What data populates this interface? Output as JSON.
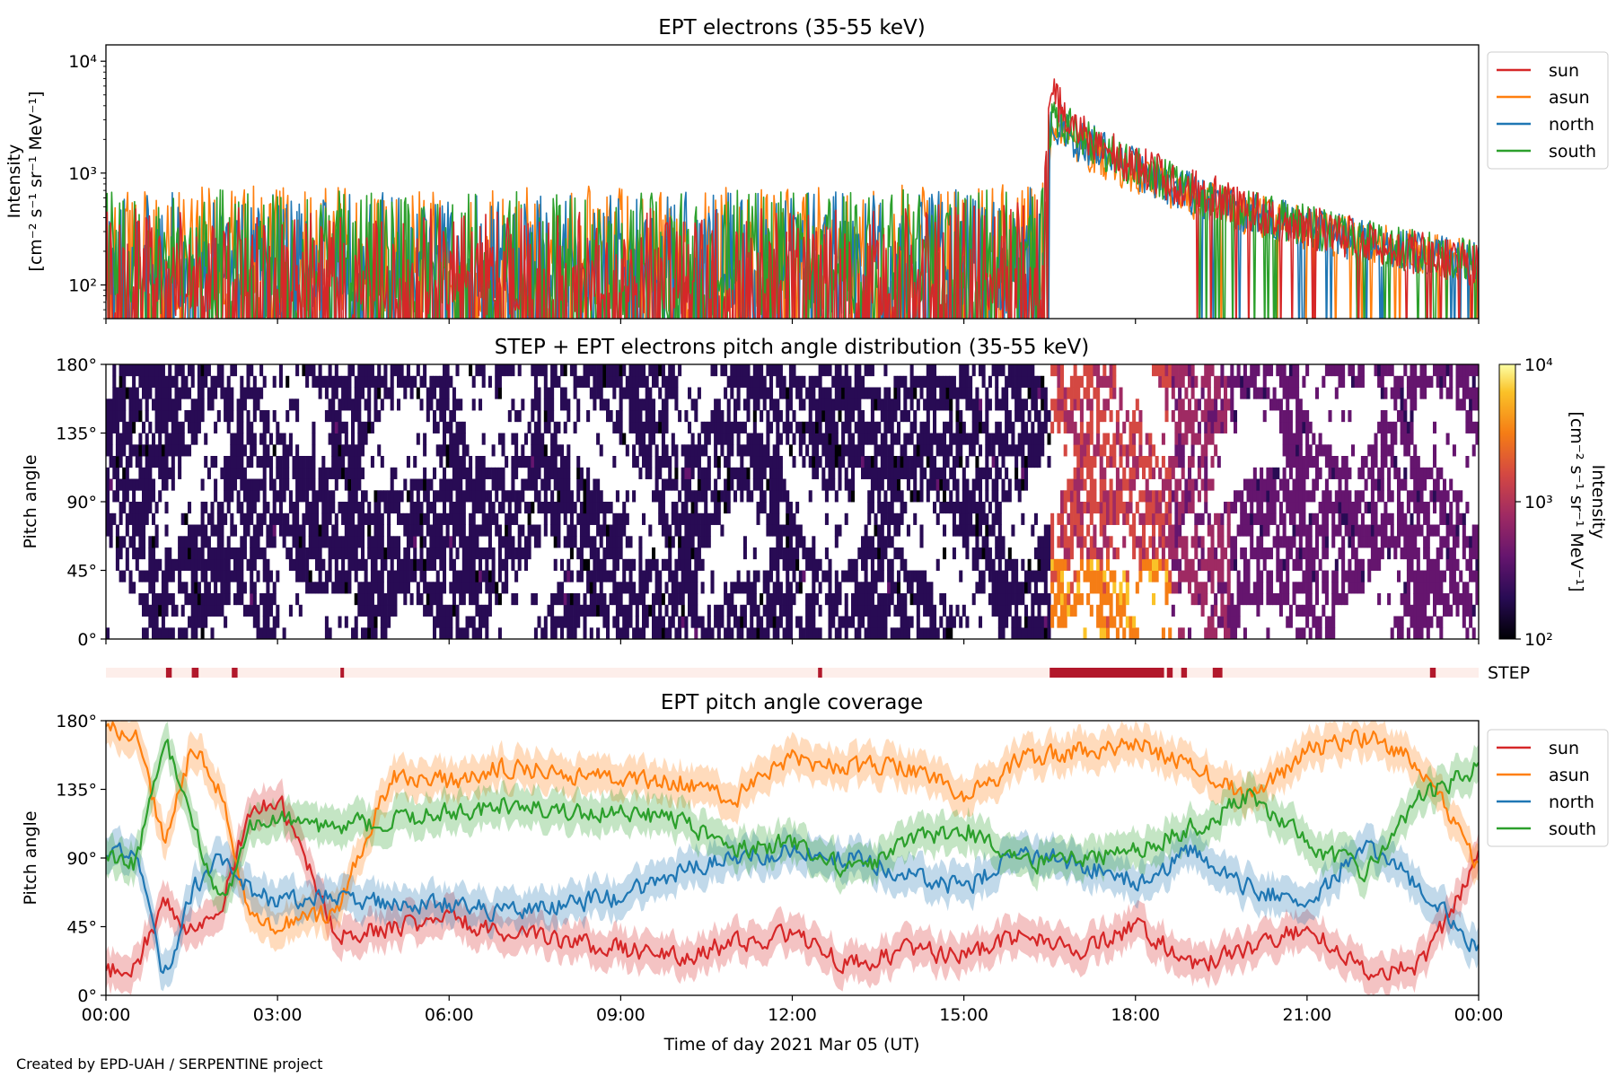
{
  "credit": "Created by EPD-UAH / SERPENTINE project",
  "colors": {
    "sun": "#d62728",
    "asun": "#ff7f0e",
    "north": "#1f77b4",
    "south": "#2ca02c",
    "step_bar": "#b2182b",
    "step_bg": "#fdeeea"
  },
  "chart_data": [
    {
      "type": "line",
      "title": "EPT electrons (35-55 keV)",
      "ylabel_line1": "Intensity",
      "ylabel_line2": "[cm⁻² s⁻¹ sr⁻¹ MeV⁻¹]",
      "yscale": "log",
      "ylim": [
        50,
        14000
      ],
      "yticks": [
        {
          "value": 100,
          "label": "10²"
        },
        {
          "value": 1000,
          "label": "10³"
        },
        {
          "value": 10000,
          "label": "10⁴"
        }
      ],
      "xlim_hours": [
        0,
        24
      ],
      "legend_position": "outside-right",
      "series": [
        {
          "name": "sun",
          "x_hours": [
            0,
            2,
            4,
            6,
            8,
            10,
            12,
            14,
            16,
            16.4,
            16.55,
            16.7,
            17,
            17.5,
            18,
            18.5,
            19,
            20,
            21,
            22,
            23,
            24
          ],
          "values": [
            130,
            135,
            130,
            135,
            130,
            135,
            140,
            145,
            150,
            160,
            5200,
            3600,
            2200,
            1600,
            1200,
            900,
            700,
            450,
            330,
            250,
            190,
            150
          ]
        },
        {
          "name": "asun",
          "x_hours": [
            0,
            2,
            4,
            6,
            8,
            10,
            12,
            14,
            16,
            16.4,
            16.55,
            16.7,
            17,
            17.5,
            18,
            18.5,
            19,
            20,
            21,
            22,
            23,
            24
          ],
          "values": [
            200,
            210,
            205,
            200,
            210,
            205,
            200,
            220,
            230,
            240,
            1800,
            2400,
            1800,
            1300,
            1000,
            800,
            600,
            420,
            320,
            240,
            190,
            160
          ]
        },
        {
          "name": "north",
          "x_hours": [
            0,
            2,
            4,
            6,
            8,
            10,
            12,
            14,
            16,
            16.4,
            16.55,
            16.7,
            17,
            17.5,
            18,
            18.5,
            19,
            20,
            21,
            22,
            23,
            24
          ],
          "values": [
            180,
            185,
            180,
            185,
            180,
            185,
            190,
            195,
            200,
            210,
            3000,
            2600,
            2000,
            1500,
            1100,
            850,
            650,
            430,
            320,
            240,
            190,
            160
          ]
        },
        {
          "name": "south",
          "x_hours": [
            0,
            2,
            4,
            6,
            8,
            10,
            12,
            14,
            16,
            16.4,
            16.55,
            16.7,
            17,
            17.5,
            18,
            18.5,
            19,
            20,
            21,
            22,
            23,
            24
          ],
          "values": [
            190,
            195,
            190,
            195,
            190,
            195,
            200,
            205,
            210,
            220,
            3400,
            2800,
            2100,
            1550,
            1150,
            880,
            680,
            440,
            330,
            250,
            195,
            165
          ]
        }
      ]
    },
    {
      "type": "heatmap",
      "title": "STEP + EPT electrons pitch angle distribution (35-55 keV)",
      "ylabel": "Pitch angle",
      "ylim": [
        0,
        180
      ],
      "yticks": [
        "0°",
        "45°",
        "90°",
        "135°",
        "180°"
      ],
      "xlim_hours": [
        0,
        24
      ],
      "colorbar": {
        "label_line1": "Intensity",
        "label_line2": "[cm⁻² s⁻¹ sr⁻¹ MeV⁻¹]",
        "scale": "log",
        "range": [
          100,
          10000
        ],
        "ticks": [
          {
            "value": 100,
            "label": "10²"
          },
          {
            "value": 1000,
            "label": "10³"
          },
          {
            "value": 10000,
            "label": "10⁴"
          }
        ],
        "colormap": "inferno"
      },
      "step_label": "STEP",
      "step_intervals_hours": [
        [
          1.05,
          1.15
        ],
        [
          1.5,
          1.62
        ],
        [
          2.2,
          2.3
        ],
        [
          4.1,
          4.16
        ],
        [
          12.45,
          12.52
        ],
        [
          16.5,
          18.5
        ],
        [
          18.55,
          18.65
        ],
        [
          18.8,
          18.9
        ],
        [
          19.35,
          19.52
        ],
        [
          23.15,
          23.25
        ]
      ]
    },
    {
      "type": "line",
      "title": "EPT pitch angle coverage",
      "ylabel": "Pitch angle",
      "ylim": [
        0,
        180
      ],
      "yticks": [
        "0°",
        "45°",
        "90°",
        "135°",
        "180°"
      ],
      "xlabel": "Time of day 2021 Mar 05 (UT)",
      "xlim_hours": [
        0,
        24
      ],
      "xticks": [
        "00:00",
        "03:00",
        "06:00",
        "09:00",
        "12:00",
        "15:00",
        "18:00",
        "21:00",
        "00:00"
      ],
      "legend_position": "outside-right",
      "series": [
        {
          "name": "sun",
          "x_hours": [
            0,
            0.5,
            1,
            1.5,
            2,
            2.5,
            3,
            4,
            5,
            6,
            7,
            8,
            9,
            10,
            11,
            12,
            13,
            14,
            15,
            16,
            17,
            18,
            19,
            20,
            21,
            22,
            23,
            24
          ],
          "values": [
            15,
            20,
            60,
            40,
            60,
            120,
            130,
            40,
            45,
            50,
            40,
            35,
            30,
            25,
            35,
            40,
            20,
            30,
            25,
            40,
            30,
            45,
            20,
            30,
            45,
            15,
            20,
            90
          ]
        },
        {
          "name": "asun",
          "x_hours": [
            0,
            0.5,
            1,
            1.5,
            2,
            2.5,
            3,
            4,
            5,
            6,
            7,
            8,
            9,
            10,
            11,
            12,
            13,
            14,
            15,
            16,
            17,
            18,
            19,
            20,
            21,
            22,
            23,
            24
          ],
          "values": [
            175,
            170,
            100,
            165,
            130,
            50,
            45,
            55,
            145,
            140,
            150,
            145,
            140,
            140,
            130,
            155,
            150,
            150,
            130,
            155,
            160,
            165,
            150,
            130,
            160,
            170,
            150,
            80
          ]
        },
        {
          "name": "north",
          "x_hours": [
            0,
            0.5,
            1,
            1.5,
            2,
            2.5,
            3,
            4,
            5,
            6,
            7,
            8,
            9,
            10,
            11,
            12,
            13,
            14,
            15,
            16,
            17,
            18,
            19,
            20,
            21,
            22,
            23,
            24
          ],
          "values": [
            90,
            95,
            10,
            70,
            90,
            70,
            60,
            65,
            60,
            60,
            55,
            60,
            65,
            80,
            90,
            95,
            90,
            80,
            70,
            95,
            85,
            75,
            95,
            70,
            60,
            100,
            70,
            30
          ]
        },
        {
          "name": "south",
          "x_hours": [
            0,
            0.5,
            1,
            1.5,
            2,
            2.5,
            3,
            4,
            5,
            6,
            7,
            8,
            9,
            10,
            11,
            12,
            13,
            14,
            15,
            16,
            17,
            18,
            19,
            20,
            21,
            22,
            23,
            24
          ],
          "values": [
            90,
            85,
            170,
            110,
            60,
            110,
            115,
            110,
            115,
            120,
            125,
            120,
            120,
            115,
            95,
            100,
            80,
            100,
            110,
            85,
            90,
            95,
            110,
            130,
            100,
            80,
            130,
            150
          ]
        }
      ]
    }
  ]
}
